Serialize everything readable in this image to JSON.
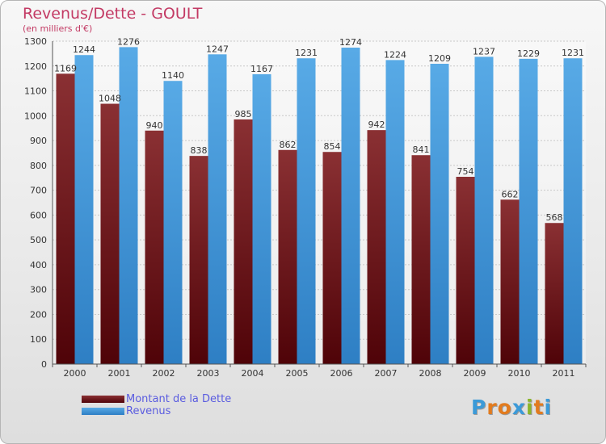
{
  "header": {
    "title": "Revenus/Dette - GOULT",
    "subtitle": "(en milliers d'€)"
  },
  "colors": {
    "dette": "#7a2528",
    "revenus": "#4a9fe0",
    "title": "#c33a64",
    "legend_text": "#5a5ce0"
  },
  "legend": [
    {
      "label": "Montant de la Dette",
      "color": "#6b0a12"
    },
    {
      "label": "Revenus",
      "color": "#3a8ed8"
    }
  ],
  "logo": {
    "text": "Proxiti",
    "letter_colors": [
      "#3b9ad8",
      "#e27b1e",
      "#e27b1e",
      "#3b9ad8",
      "#8bb52a",
      "#e27b1e",
      "#3b9ad8"
    ]
  },
  "chart_data": {
    "type": "bar",
    "categories": [
      "2000",
      "2001",
      "2002",
      "2003",
      "2004",
      "2005",
      "2006",
      "2007",
      "2008",
      "2009",
      "2010",
      "2011"
    ],
    "series": [
      {
        "name": "Montant de la Dette",
        "values": [
          1169,
          1048,
          940,
          838,
          985,
          862,
          854,
          942,
          841,
          754,
          662,
          568
        ]
      },
      {
        "name": "Revenus",
        "values": [
          1244,
          1276,
          1140,
          1247,
          1167,
          1231,
          1274,
          1224,
          1209,
          1237,
          1229,
          1231
        ]
      }
    ],
    "yticks": [
      0,
      100,
      200,
      300,
      400,
      500,
      600,
      700,
      800,
      900,
      1000,
      1100,
      1200,
      1300
    ],
    "ylim": [
      0,
      1300
    ],
    "grid": true,
    "legend_position": "bottom-left"
  }
}
